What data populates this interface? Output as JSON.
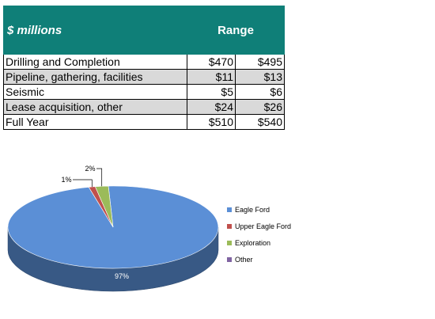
{
  "table": {
    "header_label": "$ millions",
    "header_range": "Range",
    "rows": [
      {
        "label": "Drilling and Completion",
        "low": "$470",
        "high": "$495"
      },
      {
        "label": "Pipeline, gathering, facilities",
        "low": "$11",
        "high": "$13"
      },
      {
        "label": "Seismic",
        "low": "$5",
        "high": "$6"
      },
      {
        "label": "Lease acquisition, other",
        "low": "$24",
        "high": "$26"
      },
      {
        "label": "Full Year",
        "low": "$510",
        "high": "$540"
      }
    ]
  },
  "chart_data": {
    "type": "pie",
    "title": "",
    "style": "3d",
    "legend_position": "right",
    "categories": [
      "Eagle Ford",
      "Upper Eagle Ford",
      "Exploration",
      "Other"
    ],
    "values": [
      97,
      1,
      2,
      0
    ],
    "data_labels": [
      "97%",
      "1%",
      "2%",
      ""
    ],
    "colors": [
      "#5b8fd6",
      "#c0504d",
      "#9bbb59",
      "#8064a2"
    ]
  }
}
